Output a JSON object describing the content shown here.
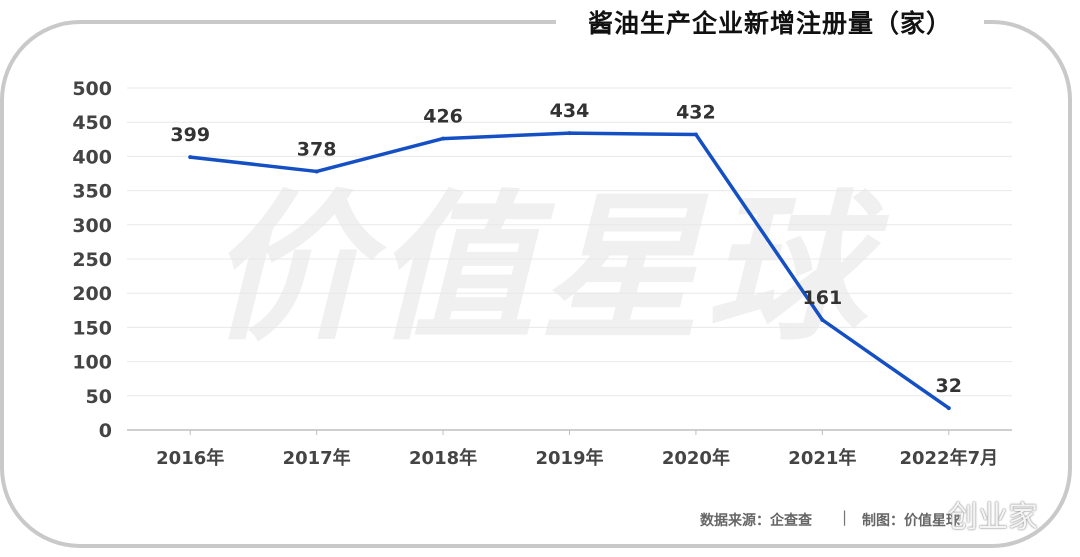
{
  "title": "酱油生产企业新增注册量（家）",
  "watermark": "价值星球",
  "footer": {
    "source": "数据来源：企查查",
    "separator": "|",
    "credit": "制图：价值星球"
  },
  "corner_watermark": "创业家",
  "chart_data": {
    "type": "line",
    "title": "酱油生产企业新增注册量（家）",
    "xlabel": "",
    "ylabel": "",
    "categories": [
      "2016年",
      "2017年",
      "2018年",
      "2019年",
      "2020年",
      "2021年",
      "2022年7月"
    ],
    "values": [
      399,
      378,
      426,
      434,
      432,
      161,
      32
    ],
    "ylim": [
      0,
      500
    ],
    "yticks": [
      0,
      50,
      100,
      150,
      200,
      250,
      300,
      350,
      400,
      450,
      500
    ],
    "grid": true,
    "legend": "none",
    "colors": {
      "line": "#1450c4",
      "grid": "#e8e8e8",
      "axis": "#bfbfbf"
    }
  }
}
